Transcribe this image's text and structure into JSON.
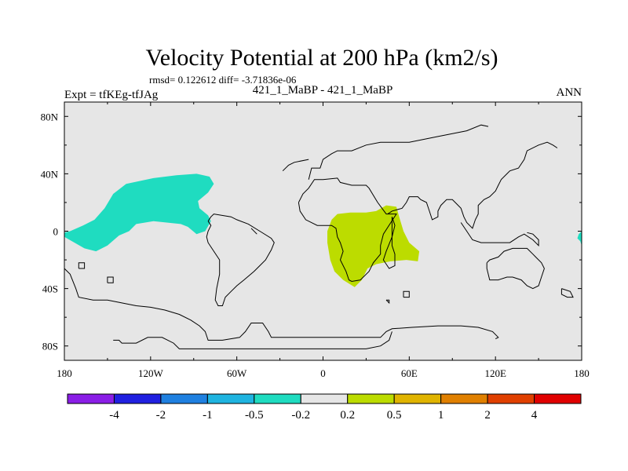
{
  "chart_data": {
    "type": "contour-map",
    "title": "Velocity Potential at 200 hPa (km2/s)",
    "stats": "rmsd= 0.122612 diff= -3.71836e-06",
    "left_label": "Expt = tfKEg-tfJAg",
    "center_label": "421_1_MaBP - 421_1_MaBP",
    "right_label": "ANN",
    "xlim": [
      -180,
      180
    ],
    "ylim": [
      -90,
      90
    ],
    "x_ticks": [
      {
        "value": -180,
        "label": "180"
      },
      {
        "value": -120,
        "label": "120W"
      },
      {
        "value": -60,
        "label": "60W"
      },
      {
        "value": 0,
        "label": "0"
      },
      {
        "value": 60,
        "label": "60E"
      },
      {
        "value": 120,
        "label": "120E"
      },
      {
        "value": 180,
        "label": "180"
      }
    ],
    "y_ticks": [
      {
        "value": 80,
        "label": "80N"
      },
      {
        "value": 40,
        "label": "40N"
      },
      {
        "value": 0,
        "label": "0"
      },
      {
        "value": -40,
        "label": "40S"
      },
      {
        "value": -80,
        "label": "80S"
      }
    ],
    "background_color": "#e6e6e6",
    "regions": [
      {
        "name": "negative (-0.5 to -0.2)",
        "color": "#1fdcc0",
        "polygon": [
          [
            -180,
            -4
          ],
          [
            -166,
            -12
          ],
          [
            -158,
            -14
          ],
          [
            -150,
            -10
          ],
          [
            -142,
            -3
          ],
          [
            -135,
            0
          ],
          [
            -130,
            5
          ],
          [
            -118,
            7
          ],
          [
            -99,
            5
          ],
          [
            -94,
            3
          ],
          [
            -88,
            -2
          ],
          [
            -82,
            0
          ],
          [
            -78,
            7
          ],
          [
            -80,
            11
          ],
          [
            -86,
            16
          ],
          [
            -87,
            21
          ],
          [
            -80,
            27
          ],
          [
            -76,
            33
          ],
          [
            -79,
            38
          ],
          [
            -88,
            40
          ],
          [
            -102,
            39
          ],
          [
            -118,
            37
          ],
          [
            -137,
            33
          ],
          [
            -146,
            26
          ],
          [
            -152,
            16
          ],
          [
            -159,
            8
          ],
          [
            -167,
            4
          ],
          [
            -176,
            0
          ],
          [
            -180,
            -1
          ]
        ]
      },
      {
        "name": "negative (-0.5 to -0.2) east edge",
        "color": "#1fdcc0",
        "polygon": [
          [
            180,
            -10
          ],
          [
            179,
            -7
          ],
          [
            177,
            -5
          ],
          [
            178,
            -2
          ],
          [
            180,
            0
          ]
        ]
      },
      {
        "name": "positive (0.2 to 0.5)",
        "color": "#bcdc00",
        "polygon": [
          [
            6,
            8
          ],
          [
            3,
            0
          ],
          [
            3,
            -8
          ],
          [
            5,
            -20
          ],
          [
            8,
            -28
          ],
          [
            14,
            -34
          ],
          [
            22,
            -39
          ],
          [
            27,
            -34
          ],
          [
            31,
            -26
          ],
          [
            37,
            -23
          ],
          [
            47,
            -21
          ],
          [
            58,
            -20
          ],
          [
            66,
            -21
          ],
          [
            67,
            -14
          ],
          [
            60,
            -8
          ],
          [
            56,
            0
          ],
          [
            53,
            10
          ],
          [
            51,
            17
          ],
          [
            44,
            18
          ],
          [
            37,
            14
          ],
          [
            30,
            13
          ],
          [
            19,
            13
          ],
          [
            10,
            12
          ]
        ]
      }
    ],
    "coastlines": [
      [
        [
          -170,
          -26
        ],
        [
          -166,
          -26
        ],
        [
          -166,
          -22
        ],
        [
          -170,
          -22
        ],
        [
          -170,
          -26
        ]
      ],
      [
        [
          -150,
          -36
        ],
        [
          -146,
          -36
        ],
        [
          -146,
          -32
        ],
        [
          -150,
          -32
        ],
        [
          -150,
          -36
        ]
      ],
      [
        [
          -180,
          -26
        ],
        [
          -176,
          -30
        ],
        [
          -172,
          -40
        ],
        [
          -170,
          -46
        ],
        [
          -160,
          -48
        ],
        [
          -150,
          -48
        ],
        [
          -140,
          -50
        ],
        [
          -130,
          -52
        ],
        [
          -120,
          -53
        ],
        [
          -110,
          -55
        ],
        [
          -100,
          -58
        ],
        [
          -92,
          -62
        ],
        [
          -86,
          -66
        ],
        [
          -82,
          -70
        ],
        [
          -80,
          -76
        ],
        [
          -70,
          -76
        ],
        [
          -58,
          -74
        ],
        [
          -54,
          -70
        ],
        [
          -50,
          -64
        ],
        [
          -42,
          -64
        ],
        [
          -38,
          -70
        ],
        [
          -36,
          -74
        ],
        [
          -20,
          -74
        ],
        [
          -10,
          -74
        ],
        [
          0,
          -74
        ],
        [
          20,
          -74
        ],
        [
          40,
          -74
        ],
        [
          44,
          -70
        ],
        [
          48,
          -68
        ],
        [
          62,
          -67
        ],
        [
          80,
          -66
        ],
        [
          96,
          -66
        ],
        [
          108,
          -67
        ],
        [
          118,
          -70
        ],
        [
          122,
          -74
        ],
        [
          120,
          -75
        ]
      ],
      [
        [
          -146,
          -76
        ],
        [
          -142,
          -76
        ],
        [
          -140,
          -78
        ],
        [
          -130,
          -78
        ],
        [
          -122,
          -74
        ],
        [
          -112,
          -74
        ],
        [
          -104,
          -78
        ],
        [
          -100,
          -82
        ],
        [
          -90,
          -82
        ],
        [
          -80,
          -82
        ],
        [
          -70,
          -82
        ],
        [
          -60,
          -82
        ],
        [
          -50,
          -82
        ],
        [
          -40,
          -82
        ],
        [
          -30,
          -82
        ],
        [
          -10,
          -82
        ],
        [
          10,
          -82
        ],
        [
          30,
          -82
        ],
        [
          40,
          -80
        ],
        [
          46,
          -76
        ],
        [
          48,
          -70
        ]
      ],
      [
        [
          -80,
          7
        ],
        [
          -78,
          10
        ],
        [
          -76,
          12
        ],
        [
          -64,
          10
        ],
        [
          -60,
          8
        ],
        [
          -52,
          5
        ],
        [
          -44,
          0
        ],
        [
          -36,
          -5
        ],
        [
          -34,
          -8
        ],
        [
          -36,
          -13
        ],
        [
          -40,
          -20
        ],
        [
          -44,
          -24
        ],
        [
          -48,
          -28
        ],
        [
          -55,
          -34
        ],
        [
          -60,
          -38
        ],
        [
          -64,
          -42
        ],
        [
          -68,
          -46
        ],
        [
          -70,
          -52
        ],
        [
          -73,
          -52
        ],
        [
          -75,
          -48
        ],
        [
          -74,
          -40
        ],
        [
          -72,
          -30
        ],
        [
          -72,
          -20
        ],
        [
          -76,
          -14
        ],
        [
          -80,
          -8
        ],
        [
          -81,
          -4
        ],
        [
          -80,
          0
        ],
        [
          -78,
          4
        ],
        [
          -80,
          7
        ]
      ],
      [
        [
          -17,
          20
        ],
        [
          -16,
          14
        ],
        [
          -12,
          8
        ],
        [
          -4,
          4
        ],
        [
          6,
          4
        ],
        [
          9,
          2
        ],
        [
          10,
          -4
        ],
        [
          12,
          -8
        ],
        [
          14,
          -14
        ],
        [
          12,
          -20
        ],
        [
          16,
          -28
        ],
        [
          18,
          -34
        ],
        [
          20,
          -35
        ],
        [
          26,
          -34
        ],
        [
          32,
          -28
        ],
        [
          35,
          -22
        ],
        [
          40,
          -16
        ],
        [
          40,
          -10
        ],
        [
          42,
          -2
        ],
        [
          51,
          12
        ],
        [
          48,
          12
        ],
        [
          44,
          12
        ],
        [
          38,
          20
        ],
        [
          32,
          30
        ],
        [
          30,
          32
        ],
        [
          20,
          32
        ],
        [
          12,
          34
        ],
        [
          10,
          37
        ],
        [
          0,
          36
        ],
        [
          -6,
          36
        ],
        [
          -10,
          30
        ],
        [
          -14,
          26
        ],
        [
          -17,
          20
        ]
      ],
      [
        [
          -10,
          36
        ],
        [
          -8,
          44
        ],
        [
          -2,
          44
        ],
        [
          0,
          50
        ],
        [
          6,
          54
        ],
        [
          10,
          56
        ],
        [
          20,
          56
        ],
        [
          30,
          60
        ],
        [
          40,
          62
        ],
        [
          60,
          62
        ],
        [
          80,
          66
        ],
        [
          100,
          70
        ],
        [
          110,
          74
        ],
        [
          115,
          73
        ]
      ],
      [
        [
          -28,
          42
        ],
        [
          -24,
          46
        ],
        [
          -20,
          48
        ],
        [
          -10,
          50
        ]
      ],
      [
        [
          -50,
          2
        ],
        [
          -46,
          -2
        ]
      ],
      [
        [
          45,
          12
        ],
        [
          48,
          14
        ],
        [
          55,
          16
        ],
        [
          58,
          20
        ],
        [
          60,
          24
        ],
        [
          66,
          24
        ],
        [
          68,
          22
        ],
        [
          72,
          20
        ],
        [
          74,
          14
        ],
        [
          76,
          8
        ],
        [
          80,
          10
        ],
        [
          80,
          14
        ],
        [
          82,
          18
        ],
        [
          86,
          22
        ],
        [
          90,
          22
        ],
        [
          92,
          20
        ],
        [
          96,
          16
        ],
        [
          98,
          10
        ],
        [
          100,
          6
        ],
        [
          104,
          2
        ],
        [
          106,
          8
        ],
        [
          108,
          12
        ],
        [
          108,
          18
        ],
        [
          112,
          22
        ],
        [
          116,
          24
        ],
        [
          120,
          28
        ],
        [
          122,
          32
        ],
        [
          124,
          36
        ],
        [
          128,
          40
        ],
        [
          130,
          42
        ],
        [
          136,
          44
        ],
        [
          140,
          50
        ],
        [
          142,
          56
        ],
        [
          150,
          60
        ],
        [
          156,
          62
        ],
        [
          160,
          60
        ],
        [
          163,
          58
        ]
      ],
      [
        [
          48,
          10
        ],
        [
          50,
          4
        ],
        [
          48,
          -4
        ],
        [
          44,
          -14
        ],
        [
          42,
          -20
        ],
        [
          46,
          -26
        ],
        [
          50,
          -24
        ],
        [
          50,
          -16
        ],
        [
          48,
          -10
        ],
        [
          48,
          10
        ]
      ],
      [
        [
          96,
          6
        ],
        [
          100,
          0
        ],
        [
          104,
          -6
        ],
        [
          110,
          -8
        ],
        [
          118,
          -8
        ],
        [
          124,
          -8
        ],
        [
          130,
          -8
        ],
        [
          136,
          -4
        ],
        [
          140,
          -2
        ],
        [
          146,
          -6
        ],
        [
          150,
          -10
        ],
        [
          150,
          -6
        ],
        [
          146,
          -2
        ],
        [
          142,
          -1
        ]
      ],
      [
        [
          114,
          -22
        ],
        [
          114,
          -26
        ],
        [
          116,
          -34
        ],
        [
          122,
          -34
        ],
        [
          128,
          -32
        ],
        [
          132,
          -32
        ],
        [
          138,
          -34
        ],
        [
          142,
          -38
        ],
        [
          146,
          -40
        ],
        [
          150,
          -38
        ],
        [
          152,
          -32
        ],
        [
          154,
          -26
        ],
        [
          152,
          -22
        ],
        [
          148,
          -18
        ],
        [
          146,
          -16
        ],
        [
          142,
          -12
        ],
        [
          136,
          -12
        ],
        [
          132,
          -12
        ],
        [
          126,
          -14
        ],
        [
          122,
          -18
        ],
        [
          116,
          -20
        ],
        [
          114,
          -22
        ]
      ],
      [
        [
          166,
          -40
        ],
        [
          172,
          -42
        ],
        [
          174,
          -46
        ],
        [
          170,
          -46
        ],
        [
          166,
          -44
        ],
        [
          166,
          -40
        ]
      ],
      [
        [
          56,
          -46
        ],
        [
          60,
          -46
        ],
        [
          60,
          -42
        ],
        [
          56,
          -42
        ],
        [
          56,
          -46
        ]
      ],
      [
        [
          44,
          -48
        ],
        [
          46,
          -50
        ],
        [
          46,
          -48
        ],
        [
          44,
          -48
        ]
      ]
    ],
    "colorbar": {
      "levels": [
        "-4",
        "-2",
        "-1",
        "-0.5",
        "-0.2",
        "0.2",
        "0.5",
        "1",
        "2",
        "4"
      ],
      "colors": [
        "#8a1ee6",
        "#2020e0",
        "#1f80e0",
        "#1fb4e0",
        "#1fdcc0",
        "#e6e6e6",
        "#bcdc00",
        "#e0b400",
        "#e08000",
        "#e04000",
        "#e00000"
      ]
    }
  }
}
